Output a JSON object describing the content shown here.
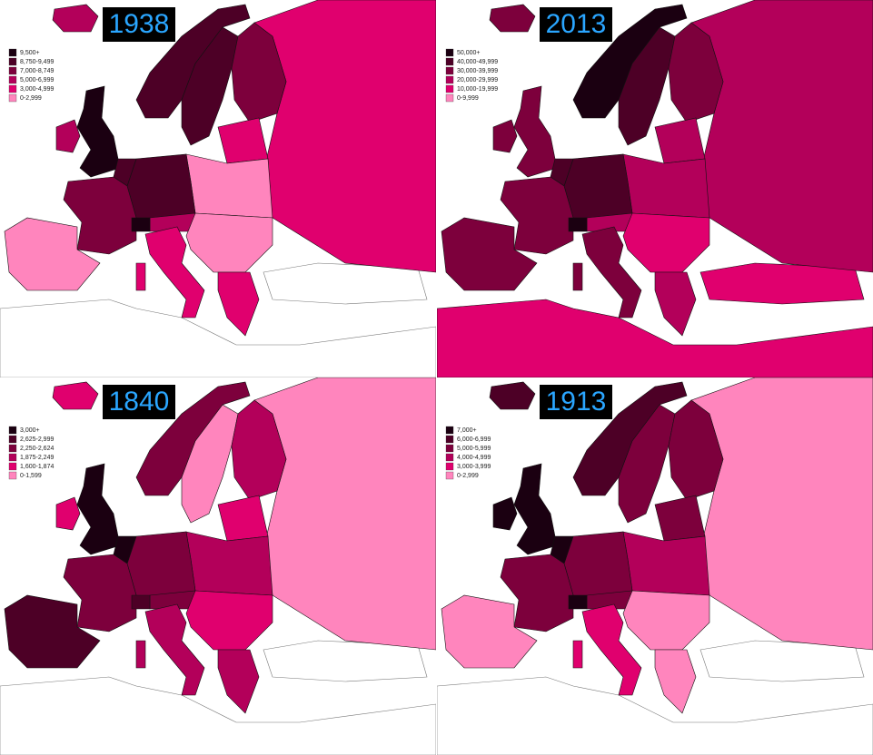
{
  "panels": [
    {
      "title": "1938",
      "legend": [
        {
          "label": "9,500+",
          "color": "#1b0011"
        },
        {
          "label": "8,750-9,499",
          "color": "#4d0026"
        },
        {
          "label": "7,000-8,749",
          "color": "#7d003c"
        },
        {
          "label": "5,000-6,999",
          "color": "#b3005a"
        },
        {
          "label": "3,000-4,999",
          "color": "#e0006e"
        },
        {
          "label": "0-2,999",
          "color": "#ff85bd"
        }
      ]
    },
    {
      "title": "2013",
      "legend": [
        {
          "label": "50,000+",
          "color": "#1b0011"
        },
        {
          "label": "40,000-49,999",
          "color": "#4d0026"
        },
        {
          "label": "30,000-39,999",
          "color": "#7d003c"
        },
        {
          "label": "20,000-29,999",
          "color": "#b3005a"
        },
        {
          "label": "10,000-19,999",
          "color": "#e0006e"
        },
        {
          "label": "0-9,999",
          "color": "#ff85bd"
        }
      ]
    },
    {
      "title": "1840",
      "legend": [
        {
          "label": "3,000+",
          "color": "#1b0011"
        },
        {
          "label": "2,625-2,999",
          "color": "#4d0026"
        },
        {
          "label": "2,250-2,624",
          "color": "#7d003c"
        },
        {
          "label": "1,875-2,249",
          "color": "#b3005a"
        },
        {
          "label": "1,600-1,874",
          "color": "#e0006e"
        },
        {
          "label": "0-1,599",
          "color": "#ff85bd"
        }
      ]
    },
    {
      "title": "1913",
      "legend": [
        {
          "label": "7,000+",
          "color": "#1b0011"
        },
        {
          "label": "6,000-6,999",
          "color": "#4d0026"
        },
        {
          "label": "5,000-5,999",
          "color": "#7d003c"
        },
        {
          "label": "4,000-4,999",
          "color": "#b3005a"
        },
        {
          "label": "3,000-3,999",
          "color": "#e0006e"
        },
        {
          "label": "0-2,999",
          "color": "#ff85bd"
        }
      ]
    }
  ]
}
